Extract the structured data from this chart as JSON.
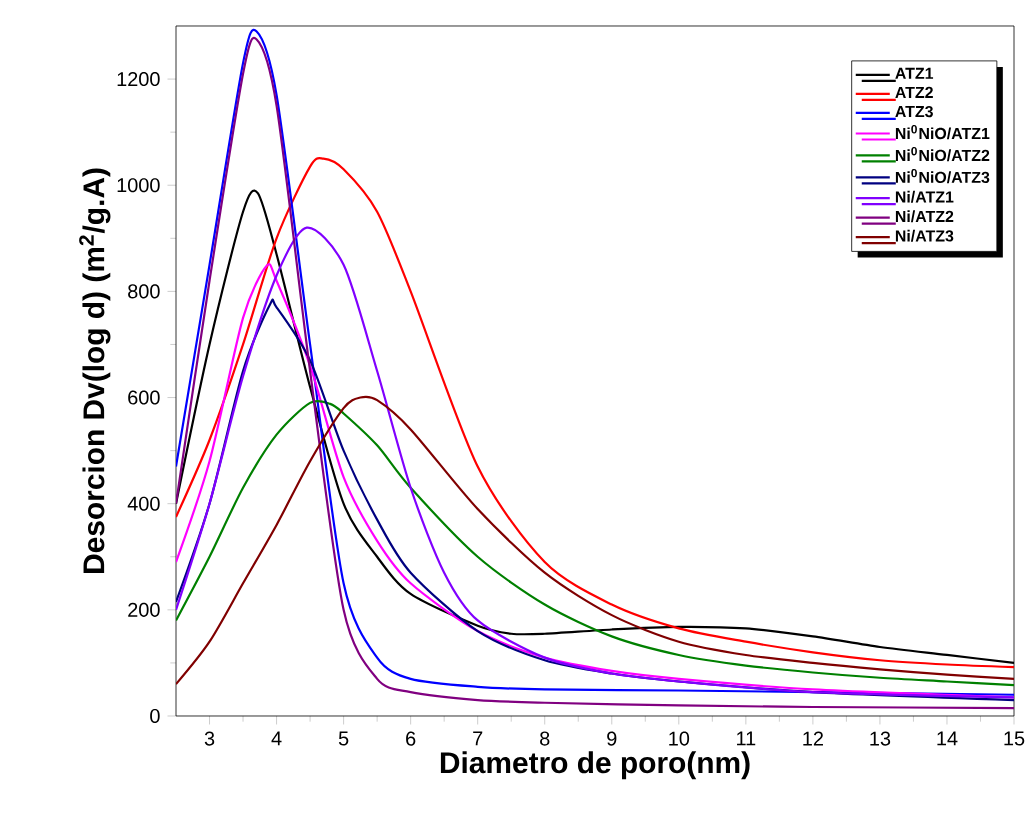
{
  "chart_data": {
    "type": "line",
    "xlabel": "Diametro de poro(nm)",
    "ylabel": "Desorcion Dv(log d) (m$^{2}$/g.A)",
    "xlim": [
      2.5,
      15
    ],
    "ylim": [
      0,
      1300
    ],
    "xticks": [
      3,
      4,
      5,
      6,
      7,
      8,
      9,
      10,
      11,
      12,
      13,
      14,
      15
    ],
    "yticks": [
      0,
      200,
      400,
      600,
      800,
      1000,
      1200
    ],
    "legend": "top right",
    "grid": false,
    "marker": "none",
    "line_style": "solid",
    "series": [
      {
        "name": "ATZ1",
        "color": "#000000",
        "x": [
          2.5,
          3,
          3.5,
          3.72,
          4,
          4.5,
          5,
          5.5,
          6,
          7,
          7.5,
          8,
          9,
          10,
          11,
          12,
          13,
          14,
          15
        ],
        "values": [
          400,
          700,
          950,
          985,
          870,
          620,
          400,
          300,
          230,
          170,
          155,
          155,
          163,
          168,
          165,
          150,
          130,
          115,
          100
        ]
      },
      {
        "name": "ATZ2",
        "color": "#ff0000",
        "x": [
          2.5,
          3,
          3.5,
          4,
          4.5,
          4.7,
          5,
          5.5,
          6,
          7,
          8,
          9,
          10,
          11,
          12,
          13,
          14,
          15
        ],
        "values": [
          375,
          520,
          700,
          900,
          1035,
          1050,
          1030,
          950,
          800,
          470,
          290,
          210,
          165,
          140,
          120,
          105,
          97,
          92
        ]
      },
      {
        "name": "ATZ3",
        "color": "#0000ff",
        "x": [
          2.5,
          3,
          3.5,
          3.7,
          4,
          4.5,
          5,
          5.5,
          6,
          7,
          8,
          10,
          12,
          15
        ],
        "values": [
          470,
          850,
          1230,
          1290,
          1170,
          700,
          250,
          110,
          70,
          55,
          50,
          48,
          45,
          40
        ]
      },
      {
        "name": "Ni$^{0}$NiO/ATZ1",
        "color": "#ff00ff",
        "x": [
          2.5,
          3,
          3.5,
          3.85,
          4,
          4.5,
          5,
          5.5,
          6,
          7,
          8,
          9,
          10,
          12,
          15
        ],
        "values": [
          290,
          480,
          750,
          848,
          820,
          660,
          450,
          330,
          250,
          160,
          110,
          85,
          70,
          50,
          35
        ]
      },
      {
        "name": "Ni$^{0}$NiO/ATZ2",
        "color": "#008000",
        "x": [
          2.5,
          3,
          3.5,
          4,
          4.5,
          4.8,
          5,
          5.5,
          6,
          7,
          8,
          9,
          10,
          11,
          12,
          13,
          14,
          15
        ],
        "values": [
          180,
          300,
          430,
          530,
          590,
          588,
          570,
          510,
          430,
          300,
          210,
          150,
          115,
          95,
          82,
          72,
          65,
          58
        ]
      },
      {
        "name": "Ni$^{0}$NiO/ATZ3",
        "color": "#000080",
        "x": [
          2.5,
          3,
          3.5,
          3.9,
          4,
          4.5,
          5,
          5.5,
          6,
          7,
          8,
          9,
          10,
          12,
          15
        ],
        "values": [
          215,
          400,
          650,
          775,
          770,
          670,
          500,
          370,
          270,
          160,
          105,
          80,
          65,
          45,
          30
        ]
      },
      {
        "name": "Ni/ATZ1",
        "color": "#8000ff",
        "x": [
          2.5,
          3,
          3.5,
          4,
          4.45,
          5,
          5.5,
          6,
          6.5,
          7,
          8,
          9,
          10,
          12,
          15
        ],
        "values": [
          200,
          400,
          640,
          830,
          920,
          850,
          650,
          430,
          270,
          180,
          110,
          80,
          65,
          45,
          35
        ]
      },
      {
        "name": "Ni/ATZ2",
        "color": "#800080",
        "x": [
          2.5,
          3,
          3.5,
          3.7,
          4,
          4.5,
          5,
          5.5,
          6,
          7,
          8,
          10,
          12,
          15
        ],
        "values": [
          400,
          820,
          1210,
          1275,
          1150,
          650,
          200,
          70,
          45,
          30,
          25,
          20,
          17,
          15
        ]
      },
      {
        "name": "Ni/ATZ3",
        "color": "#800000",
        "x": [
          2.5,
          3,
          3.5,
          4,
          4.5,
          5,
          5.25,
          5.5,
          6,
          7,
          8,
          9,
          10,
          11,
          12,
          13,
          14,
          15
        ],
        "values": [
          60,
          140,
          250,
          360,
          480,
          580,
          600,
          595,
          540,
          390,
          270,
          190,
          140,
          115,
          100,
          88,
          78,
          70
        ]
      }
    ]
  }
}
